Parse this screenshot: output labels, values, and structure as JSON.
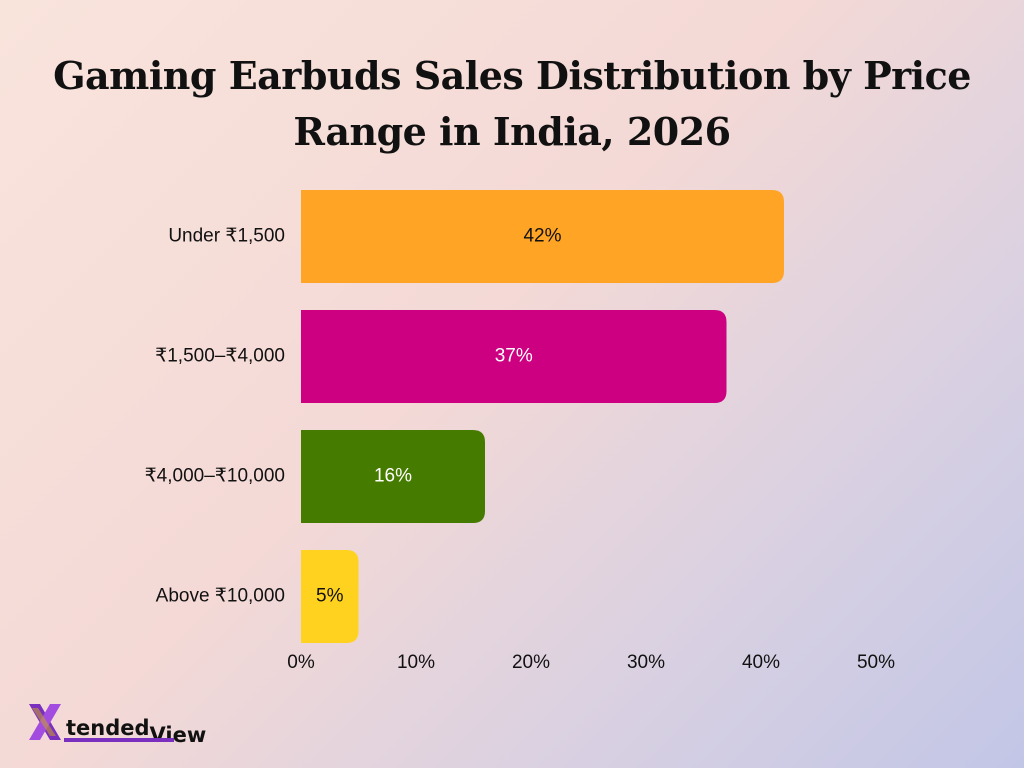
{
  "title": "Gaming Earbuds Sales Distribution by Price Range in India, 2026",
  "logo": {
    "part1": "tended",
    "part2": "View",
    "mark": "X",
    "icon": "xtendedview-logo-icon"
  },
  "colors": {
    "under_1500": "#ffa424",
    "1500_4000": "#cc0081",
    "4000_10000": "#457c00",
    "above_10000": "#ffd21f",
    "logo_purple": "#7b2fbf"
  },
  "chart_data": {
    "type": "bar",
    "orientation": "horizontal",
    "title": "Gaming Earbuds Sales Distribution by Price Range in India, 2026",
    "categories": [
      "Under ₹1,500",
      "₹1,500–₹4,000",
      "₹4,000–₹10,000",
      "Above ₹10,000"
    ],
    "values": [
      42,
      37,
      16,
      5
    ],
    "value_labels": [
      "42%",
      "37%",
      "16%",
      "5%"
    ],
    "bar_colors": [
      "#ffa424",
      "#cc0081",
      "#457c00",
      "#ffd21f"
    ],
    "value_label_colors": [
      "#111111",
      "#ffffff",
      "#ffffff",
      "#111111"
    ],
    "xlim": [
      0,
      50
    ],
    "xticks": [
      0,
      10,
      20,
      30,
      40,
      50
    ],
    "xtick_labels": [
      "0%",
      "10%",
      "20%",
      "30%",
      "40%",
      "50%"
    ],
    "xlabel": "",
    "ylabel": "",
    "grid": false,
    "legend": "none"
  }
}
